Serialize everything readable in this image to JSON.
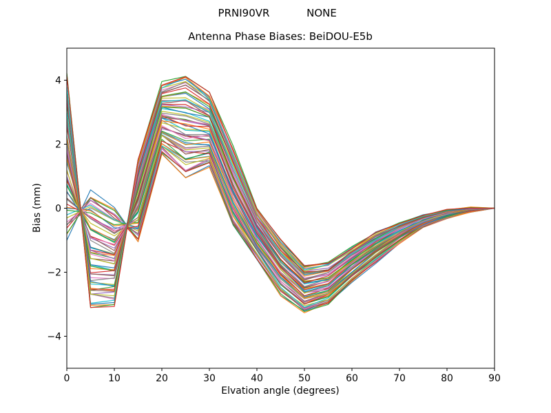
{
  "figure": {
    "header_left": "PRNI90VR",
    "header_right": "NONE",
    "title": "Antenna Phase Biases: BeiDOU-E5b",
    "xlabel": "Elvation angle (degrees)",
    "ylabel": "Bias (mm)"
  },
  "chart_data": {
    "type": "line",
    "title": "Antenna Phase Biases: BeiDOU-E5b",
    "suptitle": "PRNI90VR        NONE",
    "xlabel": "Elvation angle (degrees)",
    "ylabel": "Bias (mm)",
    "xlim": [
      0,
      90
    ],
    "ylim": [
      -5,
      5
    ],
    "x_ticks": [
      0,
      10,
      20,
      30,
      40,
      50,
      60,
      70,
      80,
      90
    ],
    "y_ticks": [
      -4,
      -2,
      0,
      2,
      4
    ],
    "grid": false,
    "legend": "none",
    "x": [
      0,
      5,
      10,
      15,
      20,
      25,
      30,
      35,
      40,
      45,
      50,
      55,
      60,
      65,
      70,
      75,
      80,
      85,
      90
    ],
    "ensemble": {
      "num_lines": 64,
      "envelope_top": [
        4.2,
        0.5,
        0.0,
        1.9,
        3.9,
        4.2,
        3.6,
        1.9,
        0.0,
        -1.0,
        -1.8,
        -1.7,
        -1.2,
        -0.75,
        -0.45,
        -0.2,
        -0.05,
        0.02,
        0.0
      ],
      "envelope_bottom": [
        -1.0,
        -3.1,
        -3.05,
        -1.3,
        1.7,
        1.0,
        1.3,
        -0.6,
        -1.6,
        -2.7,
        -3.25,
        -3.0,
        -2.3,
        -1.7,
        -1.1,
        -0.6,
        -0.3,
        -0.1,
        0.0
      ],
      "orientation": [
        1,
        -1,
        -1,
        0.8,
        1,
        1,
        1,
        1,
        1,
        1,
        1,
        1,
        1,
        1,
        1,
        1,
        1,
        1,
        1
      ]
    },
    "colors": [
      "#1f77b4",
      "#ff7f0e",
      "#2ca02c",
      "#d62728",
      "#9467bd",
      "#8c564b",
      "#e377c2",
      "#7f7f7f",
      "#bcbd22",
      "#17becf"
    ]
  }
}
